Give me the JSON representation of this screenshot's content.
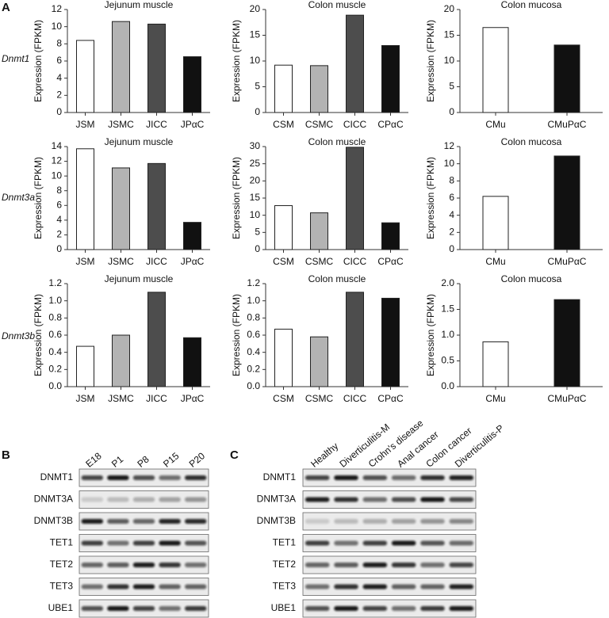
{
  "panel_labels": [
    "A",
    "B",
    "C"
  ],
  "row_labels": [
    "Dnmt1",
    "Dnmt3a",
    "Dnmt3b"
  ],
  "chart_data": [
    {
      "type": "bar",
      "title": "Jejunum muscle",
      "y_label": "Expression (FPKM)",
      "categories": [
        "JSM",
        "JSMC",
        "JICC",
        "JPαC"
      ],
      "values": [
        8.4,
        10.6,
        10.3,
        6.5
      ],
      "colors": [
        "#ffffff",
        "#b3b3b3",
        "#4d4d4d",
        "#111111"
      ],
      "ylim": [
        0,
        12
      ],
      "yticks": [
        0,
        2,
        4,
        6,
        8,
        10,
        12
      ]
    },
    {
      "type": "bar",
      "title": "Colon muscle",
      "y_label": "Expression (FPKM)",
      "categories": [
        "CSM",
        "CSMC",
        "CICC",
        "CPαC"
      ],
      "values": [
        9.2,
        9.1,
        18.9,
        13.0
      ],
      "colors": [
        "#ffffff",
        "#b3b3b3",
        "#4d4d4d",
        "#111111"
      ],
      "ylim": [
        0,
        20
      ],
      "yticks": [
        0,
        5,
        10,
        15,
        20
      ]
    },
    {
      "type": "bar",
      "title": "Colon mucosa",
      "y_label": "Expression (FPKM)",
      "categories": [
        "CMu",
        "CMuPαC"
      ],
      "values": [
        16.5,
        13.1
      ],
      "colors": [
        "#ffffff",
        "#111111"
      ],
      "ylim": [
        0,
        20
      ],
      "yticks": [
        0,
        5,
        10,
        15,
        20
      ]
    },
    {
      "type": "bar",
      "title": "Jejunum muscle",
      "y_label": "Expression (FPKM)",
      "categories": [
        "JSM",
        "JSMC",
        "JICC",
        "JPαC"
      ],
      "values": [
        13.7,
        11.1,
        11.7,
        3.7
      ],
      "colors": [
        "#ffffff",
        "#b3b3b3",
        "#4d4d4d",
        "#111111"
      ],
      "ylim": [
        0,
        14
      ],
      "yticks": [
        0,
        2,
        4,
        6,
        8,
        10,
        12,
        14
      ]
    },
    {
      "type": "bar",
      "title": "Colon muscle",
      "y_label": "Expression (FPKM)",
      "categories": [
        "CSM",
        "CSMC",
        "CICC",
        "CPαC"
      ],
      "values": [
        12.8,
        10.7,
        29.8,
        7.8
      ],
      "colors": [
        "#ffffff",
        "#b3b3b3",
        "#4d4d4d",
        "#111111"
      ],
      "ylim": [
        0,
        30
      ],
      "yticks": [
        0,
        5,
        10,
        15,
        20,
        25,
        30
      ]
    },
    {
      "type": "bar",
      "title": "Colon mucosa",
      "y_label": "Expression (FPKM)",
      "categories": [
        "CMu",
        "CMuPαC"
      ],
      "values": [
        6.2,
        10.9
      ],
      "colors": [
        "#ffffff",
        "#111111"
      ],
      "ylim": [
        0,
        12
      ],
      "yticks": [
        0,
        2,
        4,
        6,
        8,
        10,
        12
      ]
    },
    {
      "type": "bar",
      "title": "Jejunum muscle",
      "y_label": "Expression (FPKM)",
      "categories": [
        "JSM",
        "JSMC",
        "JICC",
        "JPαC"
      ],
      "values": [
        0.47,
        0.6,
        1.1,
        0.57
      ],
      "colors": [
        "#ffffff",
        "#b3b3b3",
        "#4d4d4d",
        "#111111"
      ],
      "ylim": [
        0,
        1.2
      ],
      "yticks": [
        {
          "value": 0,
          "label": "0.0"
        },
        0.2,
        0.4,
        0.6,
        0.8,
        {
          "value": 1,
          "label": "1.0"
        },
        1.2
      ]
    },
    {
      "type": "bar",
      "title": "Colon muscle",
      "y_label": "Expression (FPKM)",
      "categories": [
        "CSM",
        "CSMC",
        "CICC",
        "CPαC"
      ],
      "values": [
        0.67,
        0.58,
        1.1,
        1.03
      ],
      "colors": [
        "#ffffff",
        "#b3b3b3",
        "#4d4d4d",
        "#111111"
      ],
      "ylim": [
        0,
        1.2
      ],
      "yticks": [
        {
          "value": 0,
          "label": "0.0"
        },
        0.2,
        0.4,
        0.6,
        0.8,
        {
          "value": 1,
          "label": "1.0"
        },
        1.2
      ]
    },
    {
      "type": "bar",
      "title": "Colon mucosa",
      "y_label": "Expression (FPKM)",
      "categories": [
        "CMu",
        "CMuPαC"
      ],
      "values": [
        0.87,
        1.69
      ],
      "colors": [
        "#ffffff",
        "#111111"
      ],
      "ylim": [
        0,
        2
      ],
      "yticks": [
        {
          "value": 0,
          "label": "0.0"
        },
        0.5,
        {
          "value": 1,
          "label": "1.0"
        },
        1.5,
        {
          "value": 2,
          "label": "2.0"
        }
      ]
    }
  ],
  "blot_b": {
    "lanes": [
      "E18",
      "P1",
      "P8",
      "P15",
      "P20"
    ],
    "proteins": [
      "DNMT1",
      "DNMT3A",
      "DNMT3B",
      "TET1",
      "TET2",
      "TET3",
      "UBE1"
    ]
  },
  "blot_c": {
    "lanes": [
      "Healthy",
      "Diverticulitis-M",
      "Crohn's disease",
      "Anal cancer",
      "Colon cancer",
      "Diverticulitis-P"
    ],
    "proteins": [
      "DNMT1",
      "DNMT3A",
      "DNMT3B",
      "TET1",
      "TET2",
      "TET3",
      "UBE1"
    ]
  }
}
